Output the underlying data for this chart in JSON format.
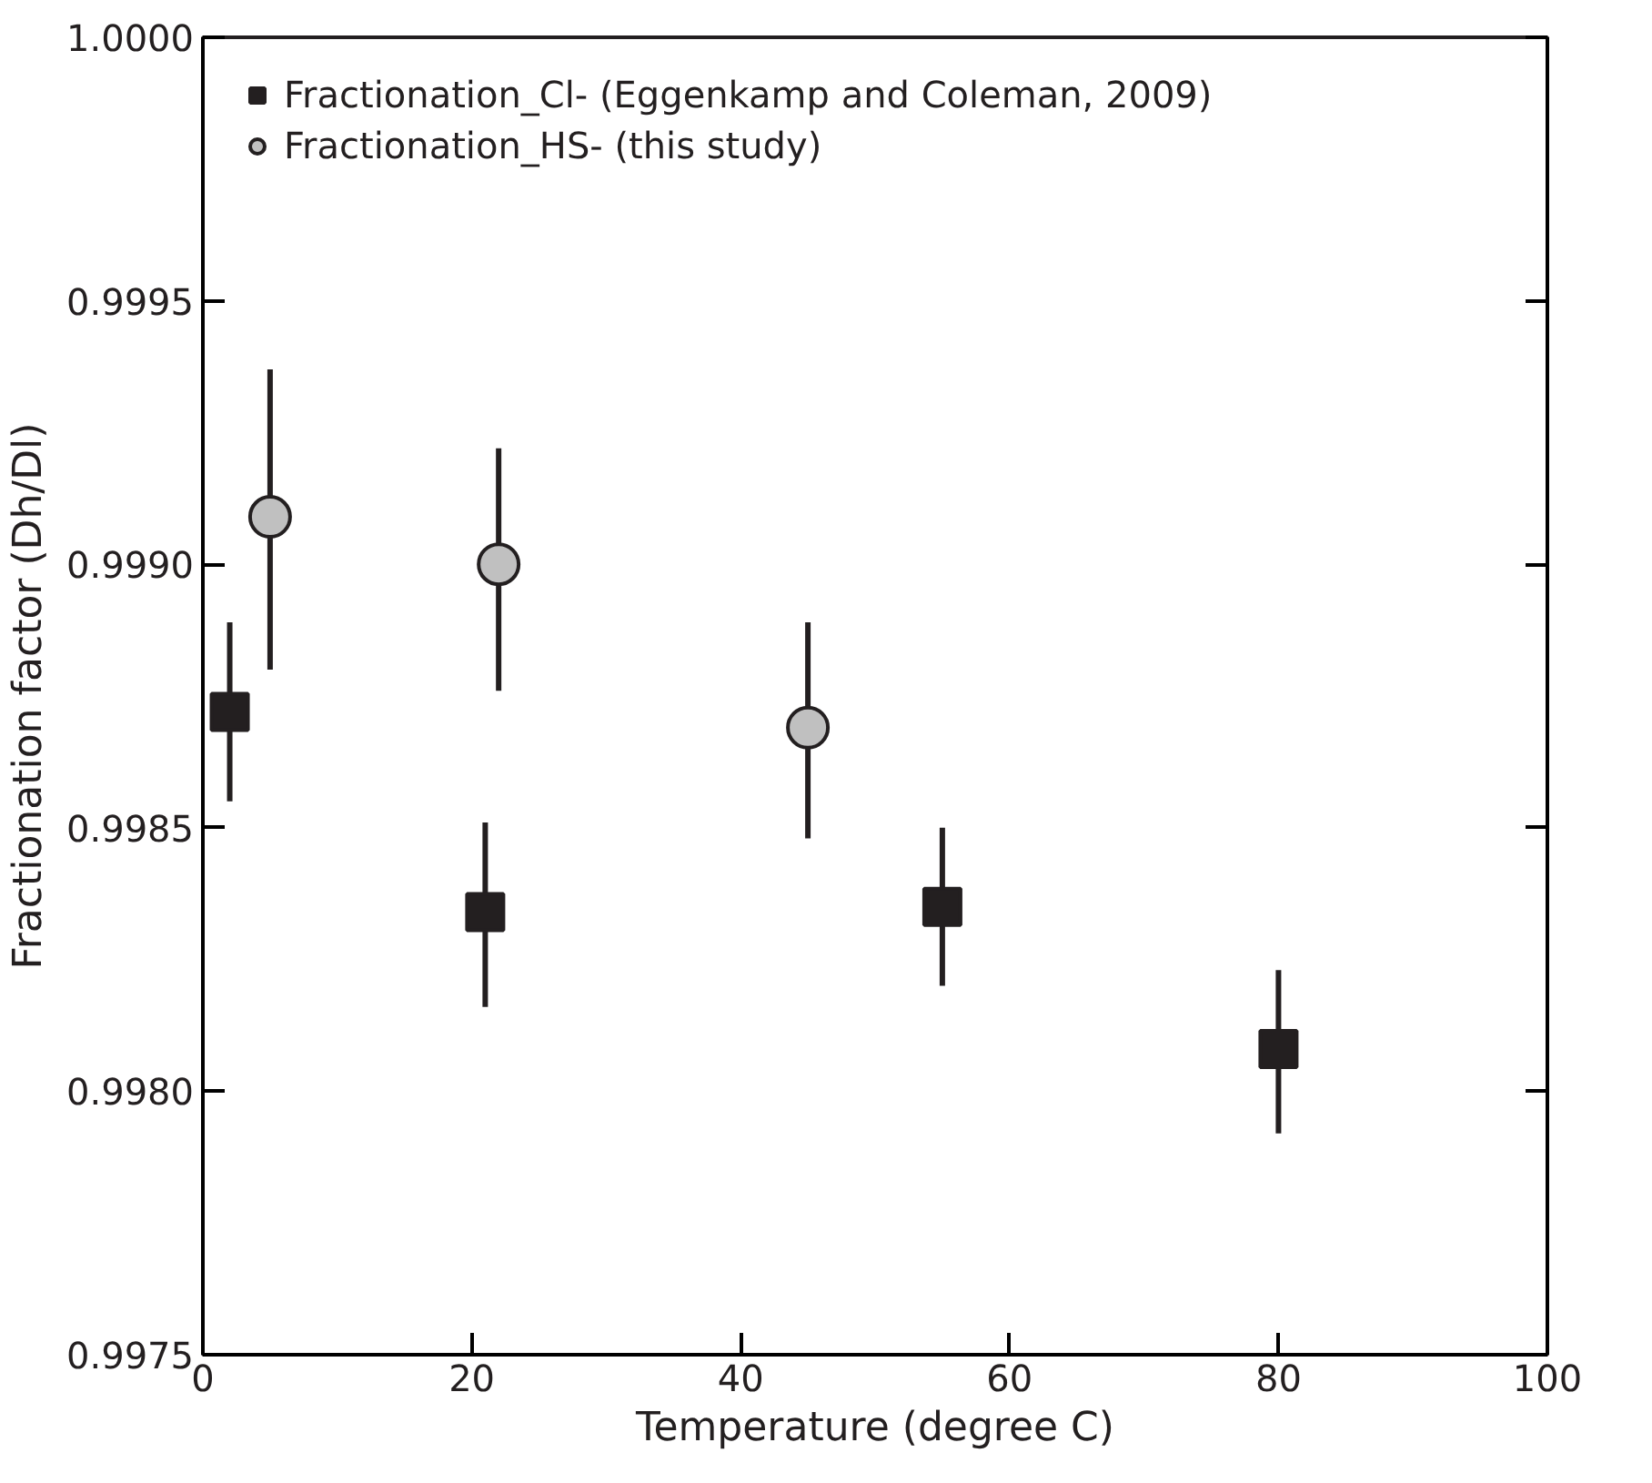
{
  "chart_data": {
    "type": "scatter",
    "xlabel": "Temperature (degree C)",
    "ylabel": "Fractionation factor (Dh/Dl)",
    "xlim": [
      0,
      100
    ],
    "xticks": [
      0,
      20,
      40,
      60,
      80,
      100
    ],
    "ylim": [
      0.9975,
      1.0
    ],
    "yticks": [
      {
        "value": 0.9975,
        "label": "0.9975"
      },
      {
        "value": 0.998,
        "label": "0.9980"
      },
      {
        "value": 0.9985,
        "label": "0.9985"
      },
      {
        "value": 0.999,
        "label": "0.9990"
      },
      {
        "value": 0.9995,
        "label": "0.9995"
      },
      {
        "value": 1.0,
        "label": "1.0000"
      }
    ],
    "grid": false,
    "legend": "top left",
    "series": [
      {
        "name": "Fractionation_Cl- (Eggenkamp and Coleman, 2009)",
        "color": "#231f20",
        "marker": "square",
        "x": [
          2,
          21,
          55,
          80
        ],
        "values": [
          0.99872,
          0.99834,
          0.99835,
          0.99808
        ],
        "errors": [
          [
            0.99855,
            0.99889
          ],
          [
            0.99816,
            0.99851
          ],
          [
            0.9982,
            0.9985
          ],
          [
            0.99792,
            0.99823
          ]
        ]
      },
      {
        "name": "Fractionation_HS- (this study)",
        "color": "#c0c0c0",
        "marker": "circle",
        "x": [
          5,
          22,
          45
        ],
        "values": [
          0.99909,
          0.999,
          0.99869
        ],
        "errors": [
          [
            0.9988,
            0.99937
          ],
          [
            0.99876,
            0.99922
          ],
          [
            0.99848,
            0.99889
          ]
        ]
      }
    ]
  }
}
